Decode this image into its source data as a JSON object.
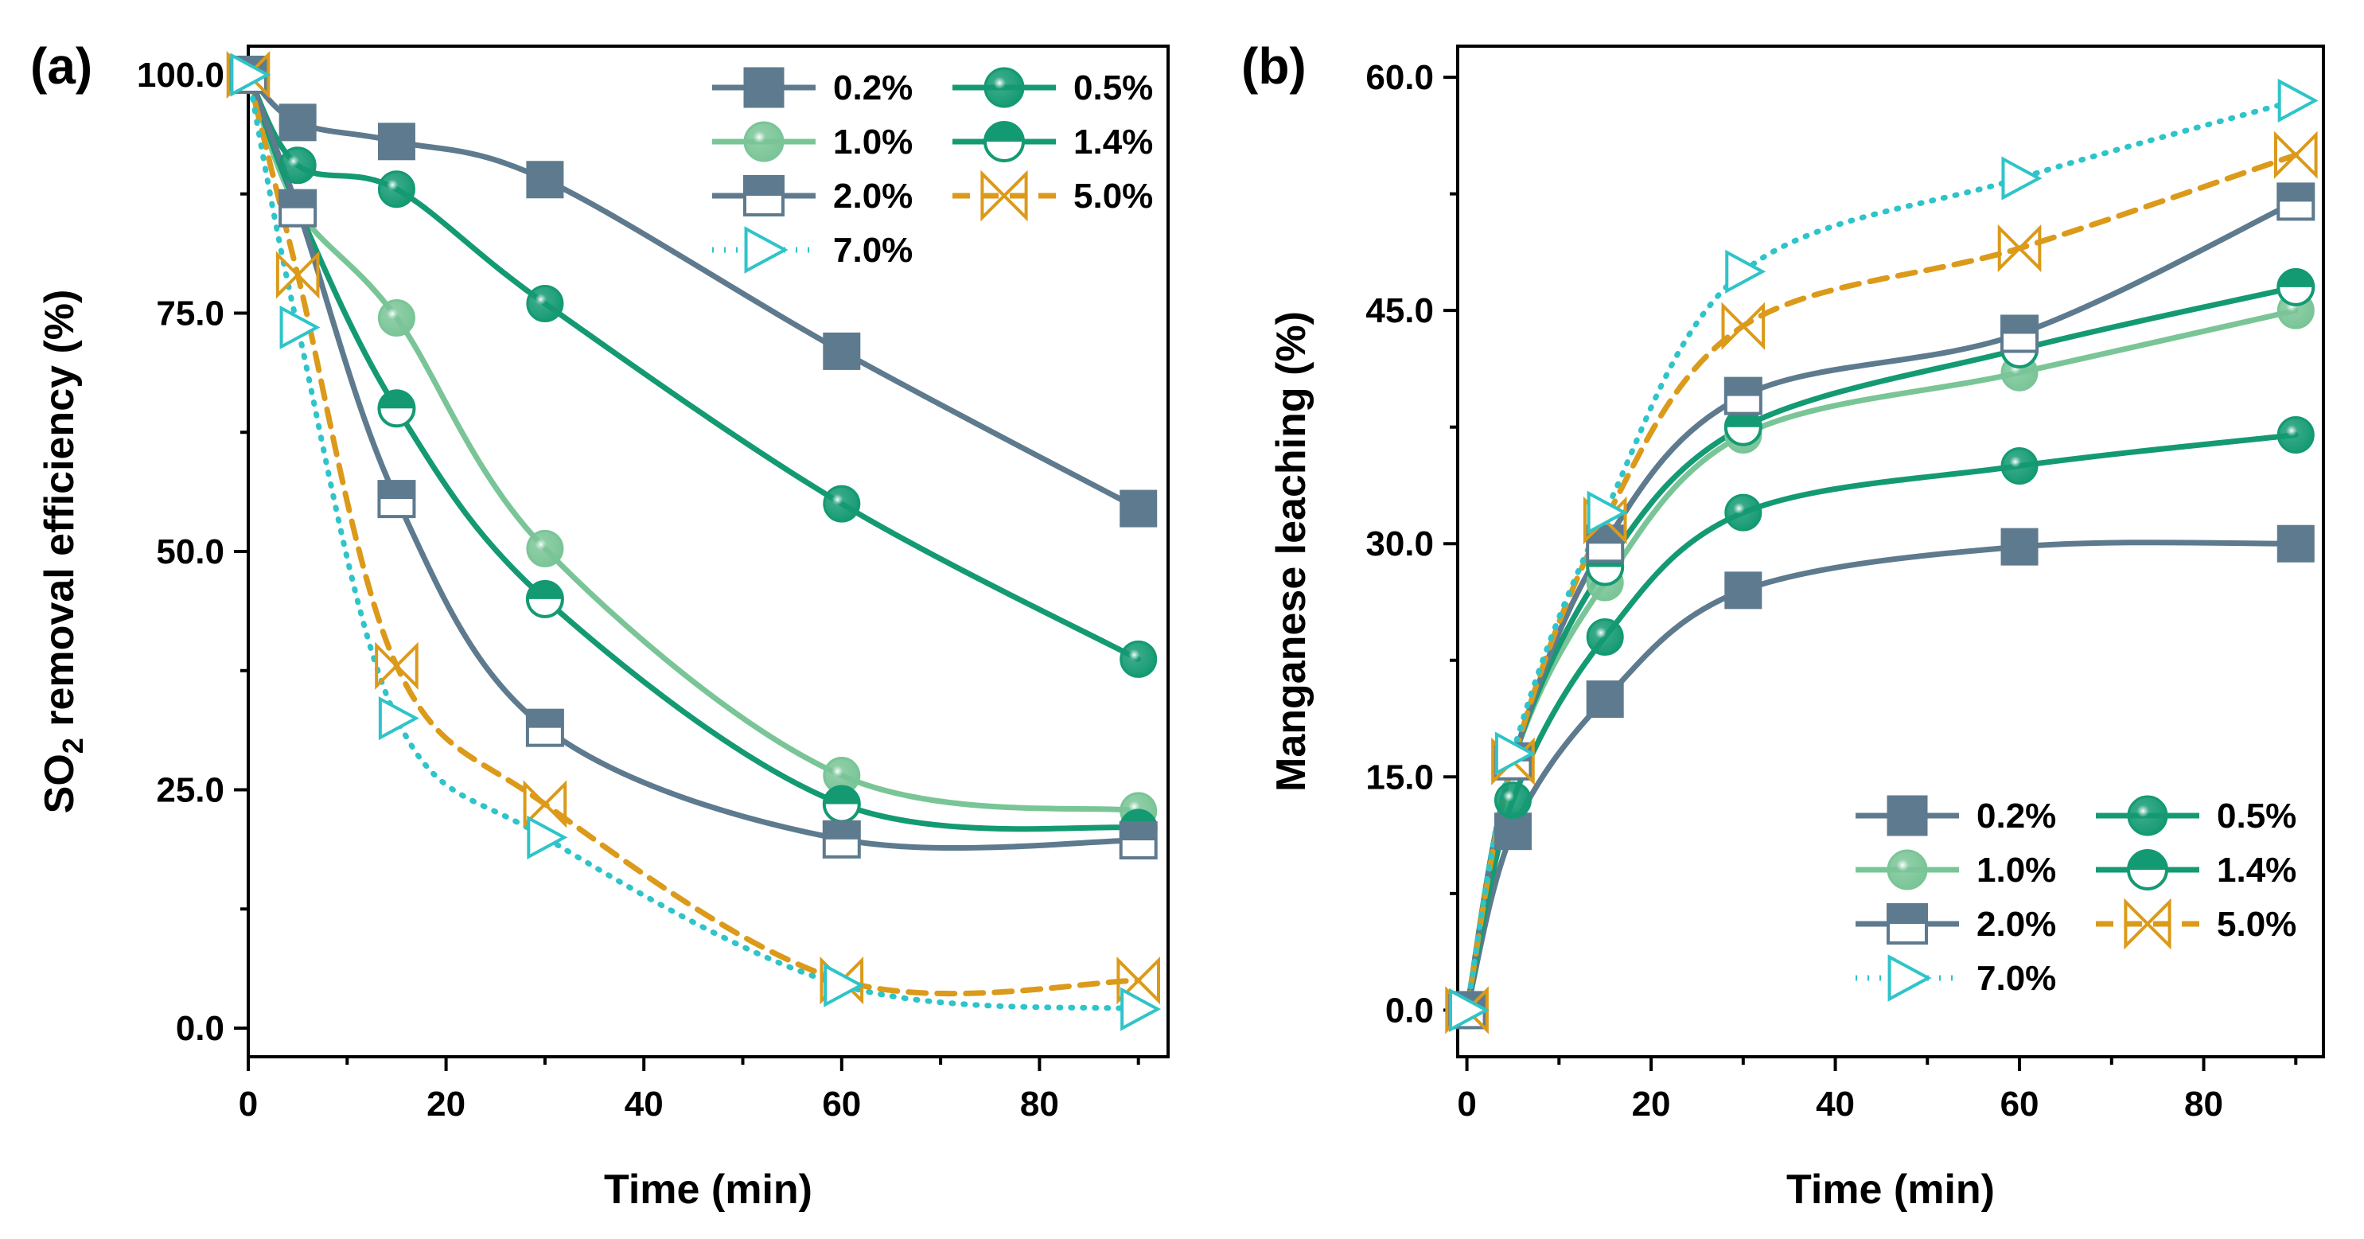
{
  "figure": {
    "panels": [
      "(a)",
      "(b)"
    ]
  },
  "series_styles": [
    {
      "name": "0.2%",
      "color": "#5e7a8e",
      "marker": "square-filled",
      "dashed": false
    },
    {
      "name": "0.5%",
      "color": "#149a73",
      "marker": "sphere",
      "dashed": false
    },
    {
      "name": "1.0%",
      "color": "#7ac597",
      "marker": "sphere",
      "dashed": false
    },
    {
      "name": "1.4%",
      "color": "#149a73",
      "marker": "circle-half",
      "dashed": false
    },
    {
      "name": "2.0%",
      "color": "#5e7a8e",
      "marker": "square-half",
      "dashed": false
    },
    {
      "name": "5.0%",
      "color": "#db9a1a",
      "marker": "bowtie",
      "dashed": true
    },
    {
      "name": "7.0%",
      "color": "#2ec4c9",
      "marker": "triangle-right",
      "dashed": "dotted"
    }
  ],
  "chart_data": [
    {
      "type": "line",
      "panel_label": "(a)",
      "title": "",
      "xlabel": "Time (min)",
      "ylabel_main": "SO",
      "ylabel_sub": "2",
      "ylabel_rest": " removal efficiency (%)",
      "xlim": [
        0,
        93
      ],
      "ylim": [
        -3,
        103
      ],
      "xticks": [
        0,
        20,
        40,
        60,
        80
      ],
      "xtick_labels": [
        "0",
        "20",
        "40",
        "60",
        "80"
      ],
      "yticks": [
        0,
        25,
        50,
        75,
        100
      ],
      "ytick_labels": [
        "0.0",
        "25.0",
        "50.0",
        "75.0",
        "100.0"
      ],
      "legend_position": "top-right",
      "x": [
        0,
        5,
        15,
        30,
        60,
        90
      ],
      "series": [
        {
          "name": "0.2%",
          "values": [
            100,
            95,
            93,
            89,
            71,
            54.5
          ]
        },
        {
          "name": "0.5%",
          "values": [
            100,
            90.5,
            88,
            76,
            55,
            38.7
          ]
        },
        {
          "name": "1.0%",
          "values": [
            100,
            86,
            74.5,
            50.3,
            26.5,
            22.8
          ]
        },
        {
          "name": "1.4%",
          "values": [
            100,
            86,
            65,
            45,
            23.5,
            21
          ]
        },
        {
          "name": "2.0%",
          "values": [
            100,
            86,
            55.5,
            31.5,
            19.8,
            19.7
          ]
        },
        {
          "name": "5.0%",
          "values": [
            100,
            79,
            38,
            23.5,
            5,
            5
          ]
        },
        {
          "name": "7.0%",
          "values": [
            100,
            73.5,
            32.5,
            20,
            4.5,
            2
          ]
        }
      ]
    },
    {
      "type": "line",
      "panel_label": "(b)",
      "title": "",
      "xlabel": "Time (min)",
      "ylabel_main": "Manganese leaching (%)",
      "ylabel_sub": "",
      "ylabel_rest": "",
      "xlim": [
        -1,
        93
      ],
      "ylim": [
        -3,
        62
      ],
      "xticks": [
        0,
        20,
        40,
        60,
        80
      ],
      "xtick_labels": [
        "0",
        "20",
        "40",
        "60",
        "80"
      ],
      "yticks": [
        0,
        15,
        30,
        45,
        60
      ],
      "ytick_labels": [
        "0.0",
        "15.0",
        "30.0",
        "45.0",
        "60.0"
      ],
      "legend_position": "bottom-right",
      "x": [
        0,
        5,
        15,
        30,
        60,
        90
      ],
      "series": [
        {
          "name": "0.2%",
          "values": [
            0,
            11.5,
            20,
            27,
            29.8,
            30
          ]
        },
        {
          "name": "0.5%",
          "values": [
            0,
            13.5,
            24,
            32,
            35,
            37
          ]
        },
        {
          "name": "1.0%",
          "values": [
            0,
            16,
            27.5,
            37,
            41,
            45
          ]
        },
        {
          "name": "1.4%",
          "values": [
            0,
            16,
            28.5,
            37.5,
            42.5,
            46.5
          ]
        },
        {
          "name": "2.0%",
          "values": [
            0,
            16,
            30,
            39.5,
            43.5,
            52
          ]
        },
        {
          "name": "5.0%",
          "values": [
            0,
            16,
            31.5,
            44,
            49,
            55
          ]
        },
        {
          "name": "7.0%",
          "values": [
            0,
            16.5,
            32,
            47.5,
            53.5,
            58.5
          ]
        }
      ]
    }
  ]
}
